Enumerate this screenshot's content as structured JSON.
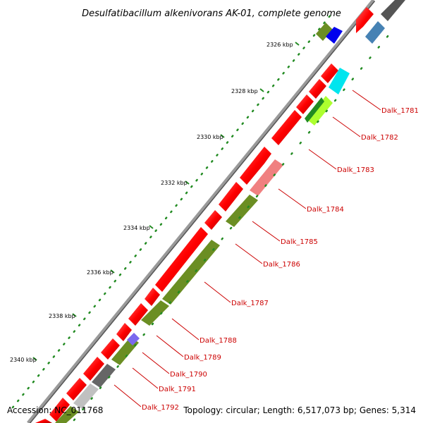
{
  "title": "Desulfatibacillum alkenivorans AK-01, complete genome",
  "footer": {
    "accession": "Accession: NC_011768",
    "summary": "Topology: circular; Length: 6,517,073 bp; Genes: 5,314"
  },
  "scale_ticks": [
    "2326 kbp",
    "2328 kbp",
    "2330 kbp",
    "2332 kbp",
    "2334 kbp",
    "2336 kbp",
    "2338 kbp",
    "2340 kbp"
  ],
  "gene_labels": [
    "Dalk_1781",
    "Dalk_1782",
    "Dalk_1783",
    "Dalk_1784",
    "Dalk_1785",
    "Dalk_1786",
    "Dalk_1787",
    "Dalk_1788",
    "Dalk_1789",
    "Dalk_1790",
    "Dalk_1791",
    "Dalk_1792"
  ],
  "colors": {
    "cds_forward": "#ff0000",
    "cds_reverse": "#6b8e23",
    "backbone": "#777777",
    "tick_dots": "#228b22",
    "label": "#cc0000",
    "cyan": "#00e5ee",
    "blue": "#0000ee",
    "steelblue": "#4682b4",
    "pink": "#f08080",
    "lightgreen": "#adff2f",
    "slateblue": "#7b68ee",
    "gray": "#666666",
    "lightgray": "#c0c0c0"
  }
}
